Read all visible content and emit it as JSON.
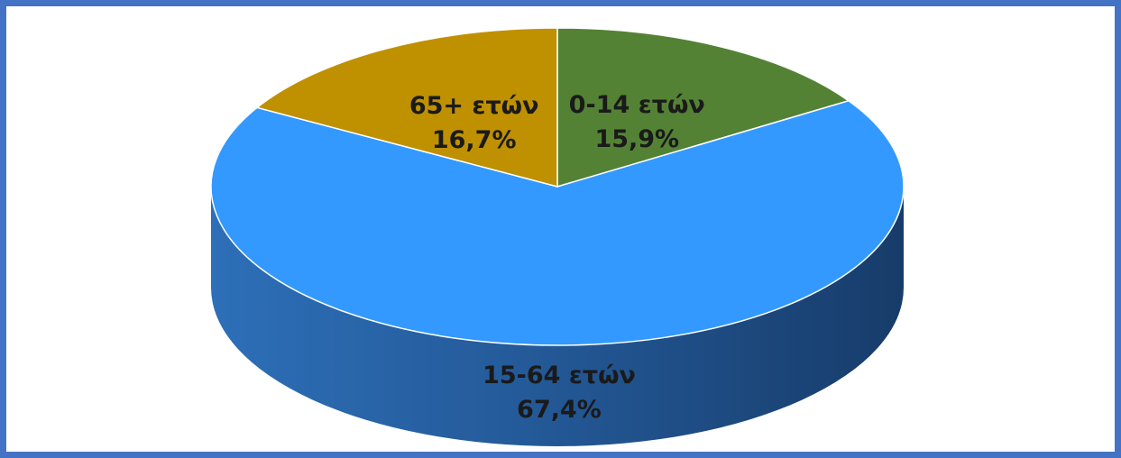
{
  "chart_data": {
    "type": "pie",
    "title": "",
    "slices": [
      {
        "label": "0-14 ετών",
        "value": 15.9,
        "value_label": "15,9%",
        "color": "#548235"
      },
      {
        "label": "15-64 ετών",
        "value": 67.4,
        "value_label": "67,4%",
        "color": "#3399ff"
      },
      {
        "label": "65+ ετών",
        "value": 16.7,
        "value_label": "16,7%",
        "color": "#bf9000"
      }
    ],
    "style": "3d",
    "legend": "none",
    "border_color": "#4472c4"
  }
}
